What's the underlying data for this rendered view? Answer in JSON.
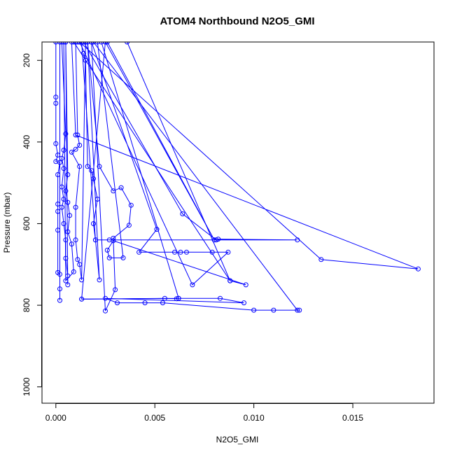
{
  "chart_data": {
    "type": "line",
    "title": "ATOM4 Northbound N2O5_GMI",
    "xlabel": "N2O5_GMI",
    "ylabel": "Pressure (mbar)",
    "xlim": [
      -0.0007,
      0.0191
    ],
    "ylim": [
      1040,
      155
    ],
    "y_reversed": true,
    "xticks": [
      0.0,
      0.005,
      0.01,
      0.015
    ],
    "xtick_labels": [
      "0.000",
      "0.005",
      "0.010",
      "0.015"
    ],
    "yticks": [
      200,
      400,
      600,
      800,
      1000
    ],
    "ytick_labels": [
      "200",
      "400",
      "600",
      "800",
      "1000"
    ],
    "grid": false,
    "legend": "none",
    "marker": "open-circle",
    "color": "#0000ff",
    "series": [
      {
        "values": [
          [
            0.0,
            155
          ],
          [
            0.0,
            290
          ],
          [
            0.0,
            305
          ],
          [
            0.0,
            404
          ],
          [
            0.0001,
            432
          ],
          [
            0.0,
            448
          ],
          [
            0.0002,
            450
          ],
          [
            0.0001,
            480
          ],
          [
            0.0001,
            552
          ],
          [
            0.0001,
            570
          ],
          [
            0.0001,
            616
          ],
          [
            0.0001,
            720
          ],
          [
            0.0002,
            724
          ],
          [
            0.0002,
            760
          ],
          [
            0.0002,
            788
          ],
          [
            0.0002,
            155
          ]
        ]
      },
      {
        "values": [
          [
            0.0003,
            155
          ],
          [
            0.0005,
            380
          ],
          [
            0.0004,
            420
          ],
          [
            0.0003,
            440
          ],
          [
            0.0004,
            465
          ],
          [
            0.0003,
            510
          ],
          [
            0.0004,
            540
          ],
          [
            0.0003,
            560
          ],
          [
            0.0004,
            600
          ],
          [
            0.0005,
            640
          ],
          [
            0.0005,
            685
          ],
          [
            0.0006,
            728
          ],
          [
            0.0006,
            750
          ],
          [
            0.0005,
            155
          ]
        ]
      },
      {
        "values": [
          [
            0.0005,
            155
          ],
          [
            0.0006,
            480
          ],
          [
            0.0005,
            520
          ],
          [
            0.0006,
            548
          ],
          [
            0.0007,
            580
          ],
          [
            0.0006,
            620
          ],
          [
            0.0008,
            650
          ],
          [
            0.0009,
            718
          ],
          [
            0.0005,
            740
          ],
          [
            0.0004,
            155
          ]
        ]
      },
      {
        "values": [
          [
            0.001,
            155
          ],
          [
            0.0011,
            383
          ],
          [
            0.0012,
            408
          ],
          [
            0.001,
            418
          ],
          [
            0.0008,
            425
          ],
          [
            0.0012,
            460
          ],
          [
            0.001,
            560
          ],
          [
            0.001,
            640
          ],
          [
            0.0011,
            688
          ],
          [
            0.0012,
            700
          ],
          [
            0.0013,
            738
          ],
          [
            0.0015,
            155
          ]
        ]
      },
      {
        "values": [
          [
            0.0014,
            183
          ],
          [
            0.0015,
            200
          ],
          [
            0.0016,
            460
          ],
          [
            0.0018,
            470
          ],
          [
            0.0019,
            490
          ],
          [
            0.0021,
            540
          ],
          [
            0.0019,
            600
          ],
          [
            0.002,
            640
          ],
          [
            0.0022,
            738
          ],
          [
            0.0016,
            155
          ]
        ]
      },
      {
        "values": [
          [
            0.0016,
            155
          ],
          [
            0.0022,
            460
          ],
          [
            0.0029,
            520
          ],
          [
            0.0033,
            512
          ],
          [
            0.0038,
            555
          ],
          [
            0.0037,
            604
          ],
          [
            0.0029,
            636
          ],
          [
            0.003,
            762
          ],
          [
            0.0025,
            814
          ],
          [
            0.0018,
            155
          ]
        ]
      },
      {
        "values": [
          [
            0.0018,
            155
          ],
          [
            0.0051,
            614
          ],
          [
            0.0042,
            670
          ],
          [
            0.006,
            670
          ],
          [
            0.0063,
            670
          ],
          [
            0.0066,
            670
          ],
          [
            0.0079,
            670
          ],
          [
            0.0087,
            670
          ],
          [
            0.0069,
            750
          ],
          [
            0.0012,
            155
          ]
        ]
      },
      {
        "values": [
          [
            0.0014,
            155
          ],
          [
            0.0064,
            576
          ],
          [
            0.0081,
            640
          ],
          [
            0.0082,
            638
          ],
          [
            0.0122,
            640
          ],
          [
            0.0027,
            640
          ],
          [
            0.002,
            640
          ],
          [
            0.0013,
            155
          ]
        ]
      },
      {
        "values": [
          [
            0.0012,
            155
          ],
          [
            0.0134,
            688
          ],
          [
            0.0183,
            711
          ],
          [
            0.001,
            383
          ],
          [
            0.0008,
            155
          ]
        ]
      },
      {
        "values": [
          [
            0.0009,
            155
          ],
          [
            0.0088,
            740
          ],
          [
            0.0096,
            750
          ],
          [
            0.0029,
            642
          ],
          [
            0.0026,
            665
          ],
          [
            0.0027,
            684
          ],
          [
            0.0034,
            684
          ],
          [
            0.0021,
            155
          ]
        ]
      },
      {
        "values": [
          [
            0.0013,
            785
          ],
          [
            0.0055,
            783
          ],
          [
            0.0061,
            784
          ],
          [
            0.0062,
            783
          ],
          [
            0.0083,
            783
          ],
          [
            0.0095,
            794
          ],
          [
            0.0025,
            783
          ],
          [
            0.0031,
            794
          ],
          [
            0.0045,
            794
          ],
          [
            0.0054,
            794
          ],
          [
            0.01,
            812
          ],
          [
            0.011,
            812
          ],
          [
            0.0123,
            812
          ],
          [
            0.0122,
            812
          ],
          [
            0.0019,
            155
          ]
        ]
      },
      {
        "values": [
          [
            0.0023,
            155
          ],
          [
            0.0062,
            783
          ],
          [
            0.0013,
            785
          ],
          [
            0.0025,
            155
          ]
        ]
      },
      {
        "values": [
          [
            0.0026,
            155
          ],
          [
            0.008,
            640
          ],
          [
            0.0025,
            155
          ]
        ]
      },
      {
        "values": [
          [
            0.0011,
            155
          ],
          [
            0.0036,
            155
          ],
          [
            0.0088,
            740
          ]
        ]
      }
    ]
  }
}
